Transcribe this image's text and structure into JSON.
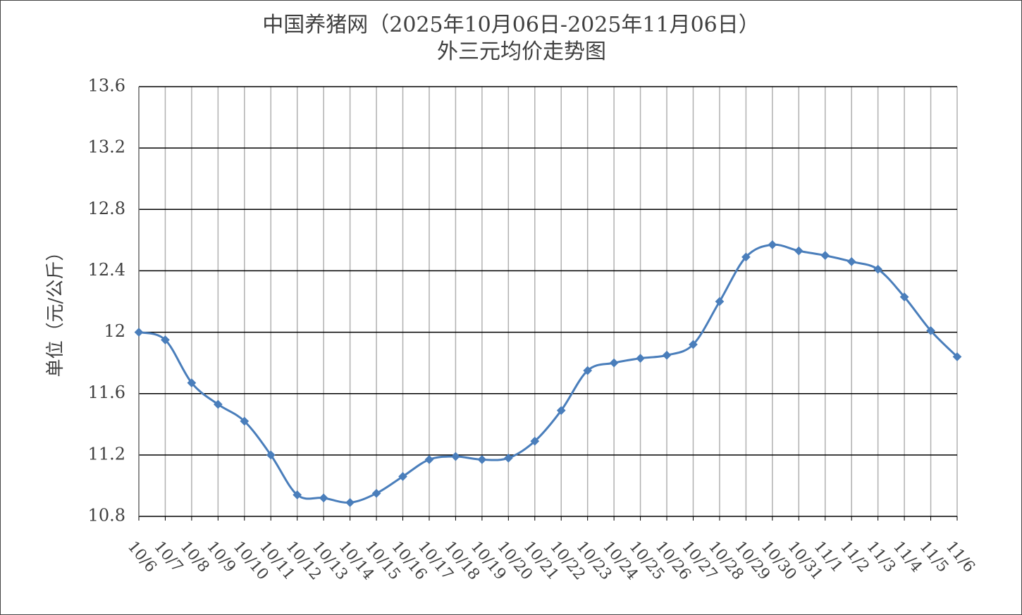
{
  "chart_data": {
    "type": "line",
    "title": "中国养猪网（2025年10月06日-2025年11月06日）",
    "subtitle": "外三元均价走势图",
    "y_label": "单位（元/公斤）",
    "categories": [
      "10/6",
      "10/7",
      "10/8",
      "10/9",
      "10/10",
      "10/11",
      "10/12",
      "10/13",
      "10/14",
      "10/15",
      "10/16",
      "10/17",
      "10/18",
      "10/19",
      "10/20",
      "10/21",
      "10/22",
      "10/23",
      "10/24",
      "10/25",
      "10/26",
      "10/27",
      "10/28",
      "10/29",
      "10/30",
      "10/31",
      "11/1",
      "11/2",
      "11/3",
      "11/4",
      "11/5",
      "11/6"
    ],
    "series": [
      {
        "color": "#4a7ebb",
        "values": [
          12.0,
          11.95,
          11.67,
          11.53,
          11.42,
          11.2,
          10.94,
          10.92,
          10.89,
          10.95,
          11.06,
          11.17,
          11.19,
          11.17,
          11.18,
          11.29,
          11.49,
          11.75,
          11.8,
          11.83,
          11.85,
          11.92,
          12.2,
          12.49,
          12.57,
          12.53,
          12.5,
          12.46,
          12.41,
          12.23,
          12.01,
          11.84
        ]
      }
    ],
    "ylim": [
      10.8,
      13.6
    ],
    "yticks": [
      10.8,
      11.2,
      11.6,
      12,
      12.4,
      12.8,
      13.2,
      13.6
    ],
    "grid": true,
    "smooth": true,
    "marker": "diamond"
  }
}
